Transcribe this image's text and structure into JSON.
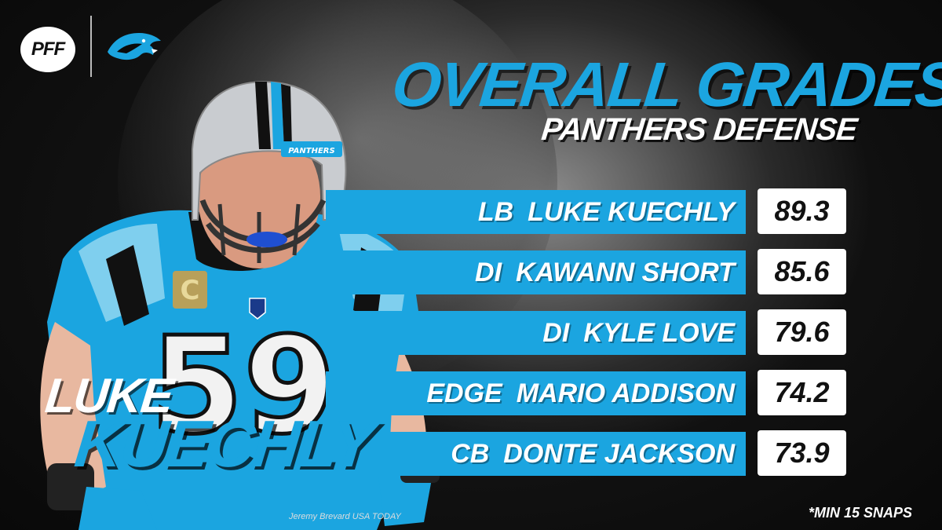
{
  "brand": {
    "logo_text": "PFF",
    "team_logo_icon": "panther-head-icon",
    "accent_color": "#1ba5e0"
  },
  "title": {
    "main": "OVERALL GRADES",
    "sub": "PANTHERS DEFENSE"
  },
  "grades": [
    {
      "position": "LB",
      "name": "LUKE KUECHLY",
      "grade": "89.3"
    },
    {
      "position": "DI",
      "name": "KAWANN SHORT",
      "grade": "85.6"
    },
    {
      "position": "DI",
      "name": "KYLE LOVE",
      "grade": "79.6"
    },
    {
      "position": "EDGE",
      "name": "MARIO ADDISON",
      "grade": "74.2"
    },
    {
      "position": "CB",
      "name": "DONTE JACKSON",
      "grade": "73.9"
    }
  ],
  "featured_player": {
    "first_name": "LUKE",
    "last_name": "KUECHLY",
    "jersey_number": "59",
    "helmet_text": "PANTHERS",
    "captain_patch": "C"
  },
  "photo_credit": "Jeremy Brevard USA TODAY",
  "footnote": "*MIN 15 SNAPS"
}
